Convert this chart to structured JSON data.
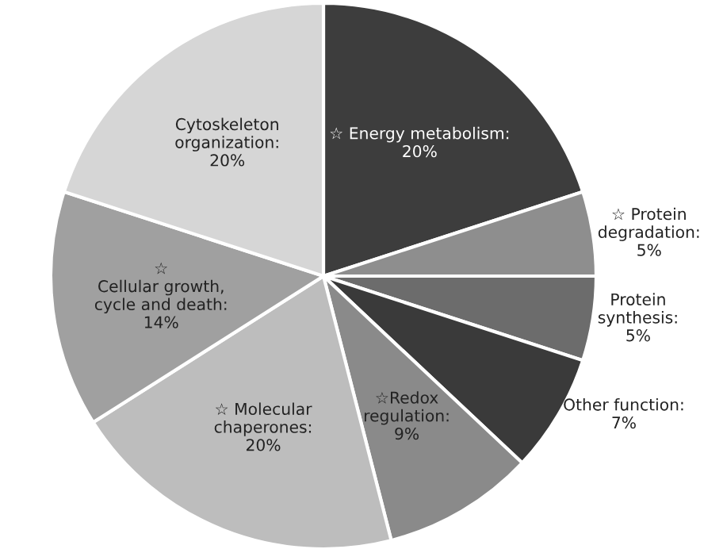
{
  "chart_data": {
    "type": "pie",
    "categories": [
      "☆ Energy metabolism:\n20%",
      "☆ Protein\ndegradation:\n5%",
      "Protein\nsynthesis:\n5%",
      "Other function:\n7%",
      "☆Redox\nregulation:\n9%",
      "☆ Molecular\nchaperones:\n20%",
      "☆\nCellular growth,\ncycle and death:\n14%",
      "Cytoskeleton\norganization:\n20%"
    ],
    "values": [
      20,
      5,
      5,
      7,
      9,
      20,
      14,
      20
    ],
    "colors": [
      "#3d3d3d",
      "#8e8e8e",
      "#6c6c6c",
      "#3a3a3a",
      "#8a8a8a",
      "#bdbdbd",
      "#a0a0a0",
      "#d6d6d6"
    ]
  }
}
